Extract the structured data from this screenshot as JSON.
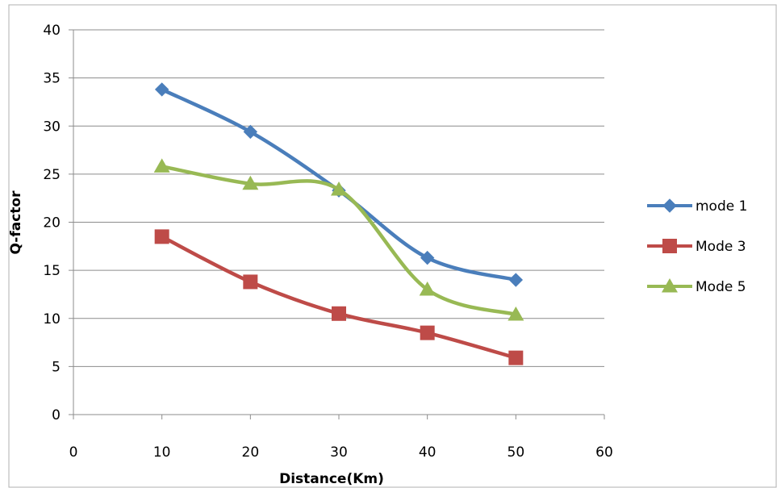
{
  "chart_data": {
    "type": "line",
    "title": "",
    "xlabel": "Distance(Km)",
    "ylabel": "Q-factor",
    "xlim": [
      0,
      60
    ],
    "ylim": [
      0,
      40
    ],
    "x_ticks": [
      0,
      10,
      20,
      30,
      40,
      50,
      60
    ],
    "y_ticks": [
      0,
      5,
      10,
      15,
      20,
      25,
      30,
      35,
      40
    ],
    "grid": "horizontal",
    "legend_position": "right",
    "x": [
      10,
      20,
      30,
      40,
      50
    ],
    "series": [
      {
        "name": "mode 1",
        "values": [
          33.8,
          29.4,
          23.3,
          16.3,
          14.0
        ],
        "color": "#4a7ebb",
        "marker": "diamond"
      },
      {
        "name": "Mode 3",
        "values": [
          18.5,
          13.8,
          10.5,
          8.5,
          5.9
        ],
        "color": "#be4b48",
        "marker": "square"
      },
      {
        "name": "Mode 5",
        "values": [
          25.8,
          24.0,
          23.4,
          13.0,
          10.4
        ],
        "color": "#98b954",
        "marker": "triangle"
      }
    ]
  }
}
